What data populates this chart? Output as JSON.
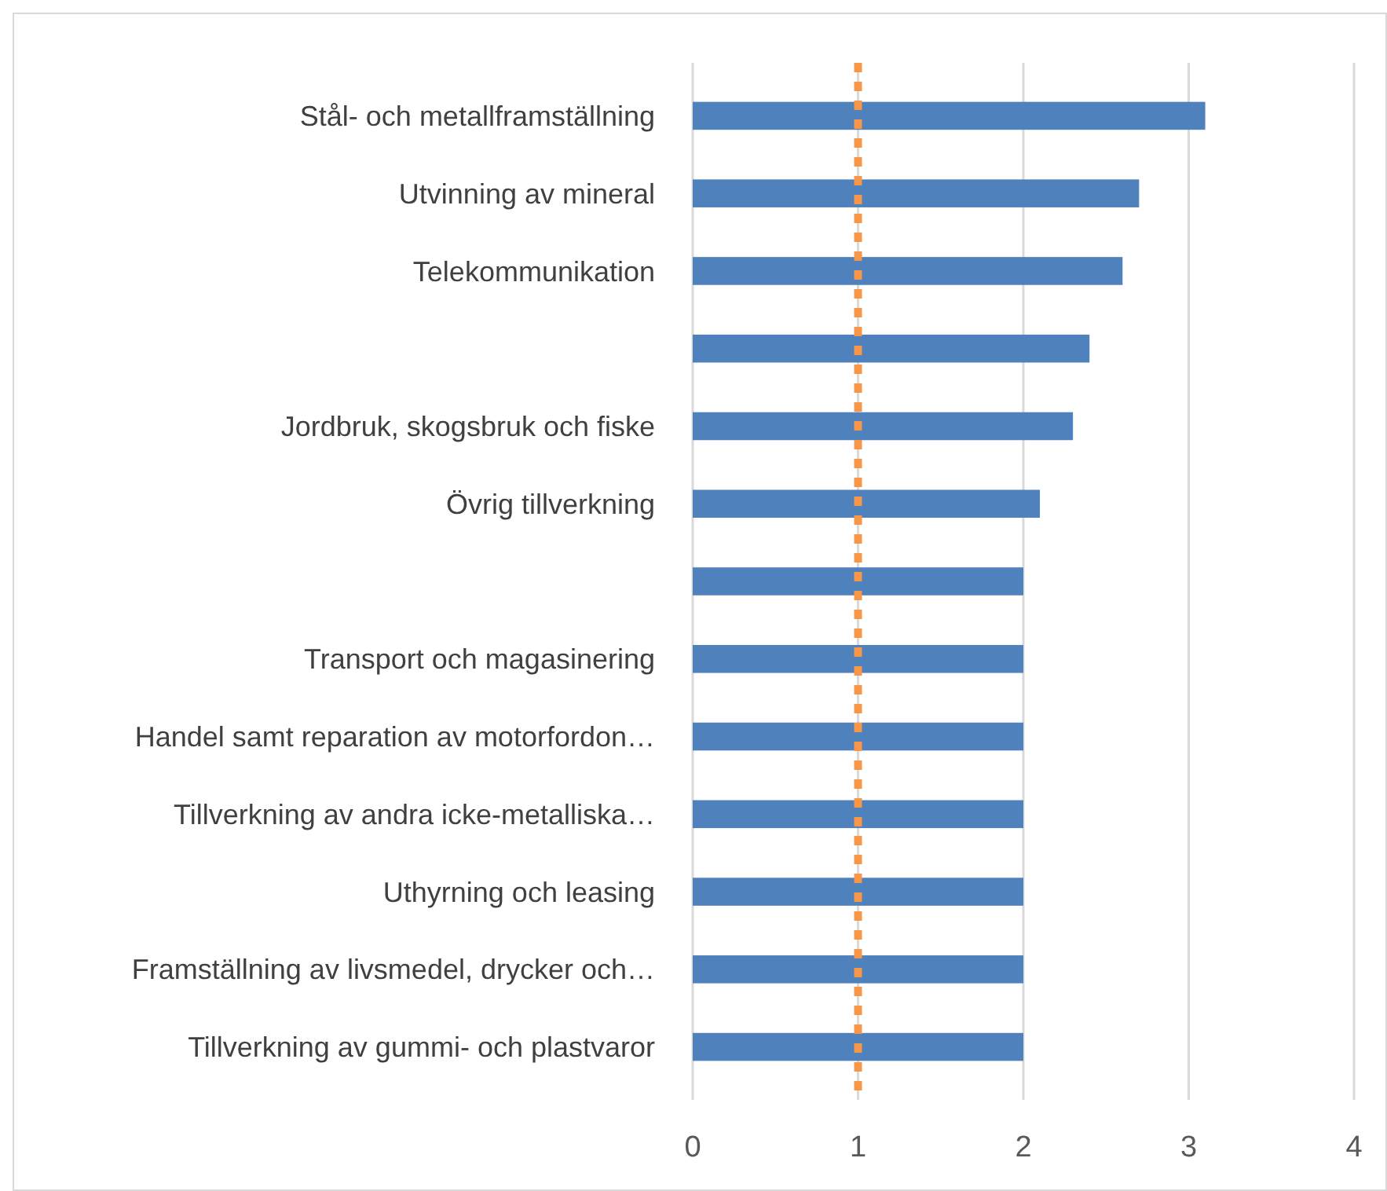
{
  "chart_data": {
    "type": "bar",
    "orientation": "horizontal",
    "categories": [
      "Stål- och metallframställning",
      "Utvinning av mineral",
      "Telekommunikation",
      null,
      "Jordbruk, skogsbruk och fiske",
      "Övrig tillverkning",
      null,
      "Transport och magasinering",
      "Handel samt reparation av motorfordon…",
      "Tillverkning av andra icke-metalliska…",
      "Uthyrning och leasing",
      "Framställning av livsmedel, drycker och…",
      "Tillverkning av gummi- och plastvaror"
    ],
    "values": [
      3.1,
      2.7,
      2.6,
      2.4,
      2.3,
      2.1,
      2,
      2,
      2,
      2,
      2,
      2,
      2
    ],
    "color": "#4f81bd",
    "xlim": [
      0,
      4
    ],
    "xticks": [
      0,
      1,
      2,
      3,
      4
    ],
    "grid": "x",
    "ref_lines": [
      {
        "axis": "x",
        "value": 1,
        "color": "#f79646",
        "line_style": "dotted"
      }
    ]
  }
}
